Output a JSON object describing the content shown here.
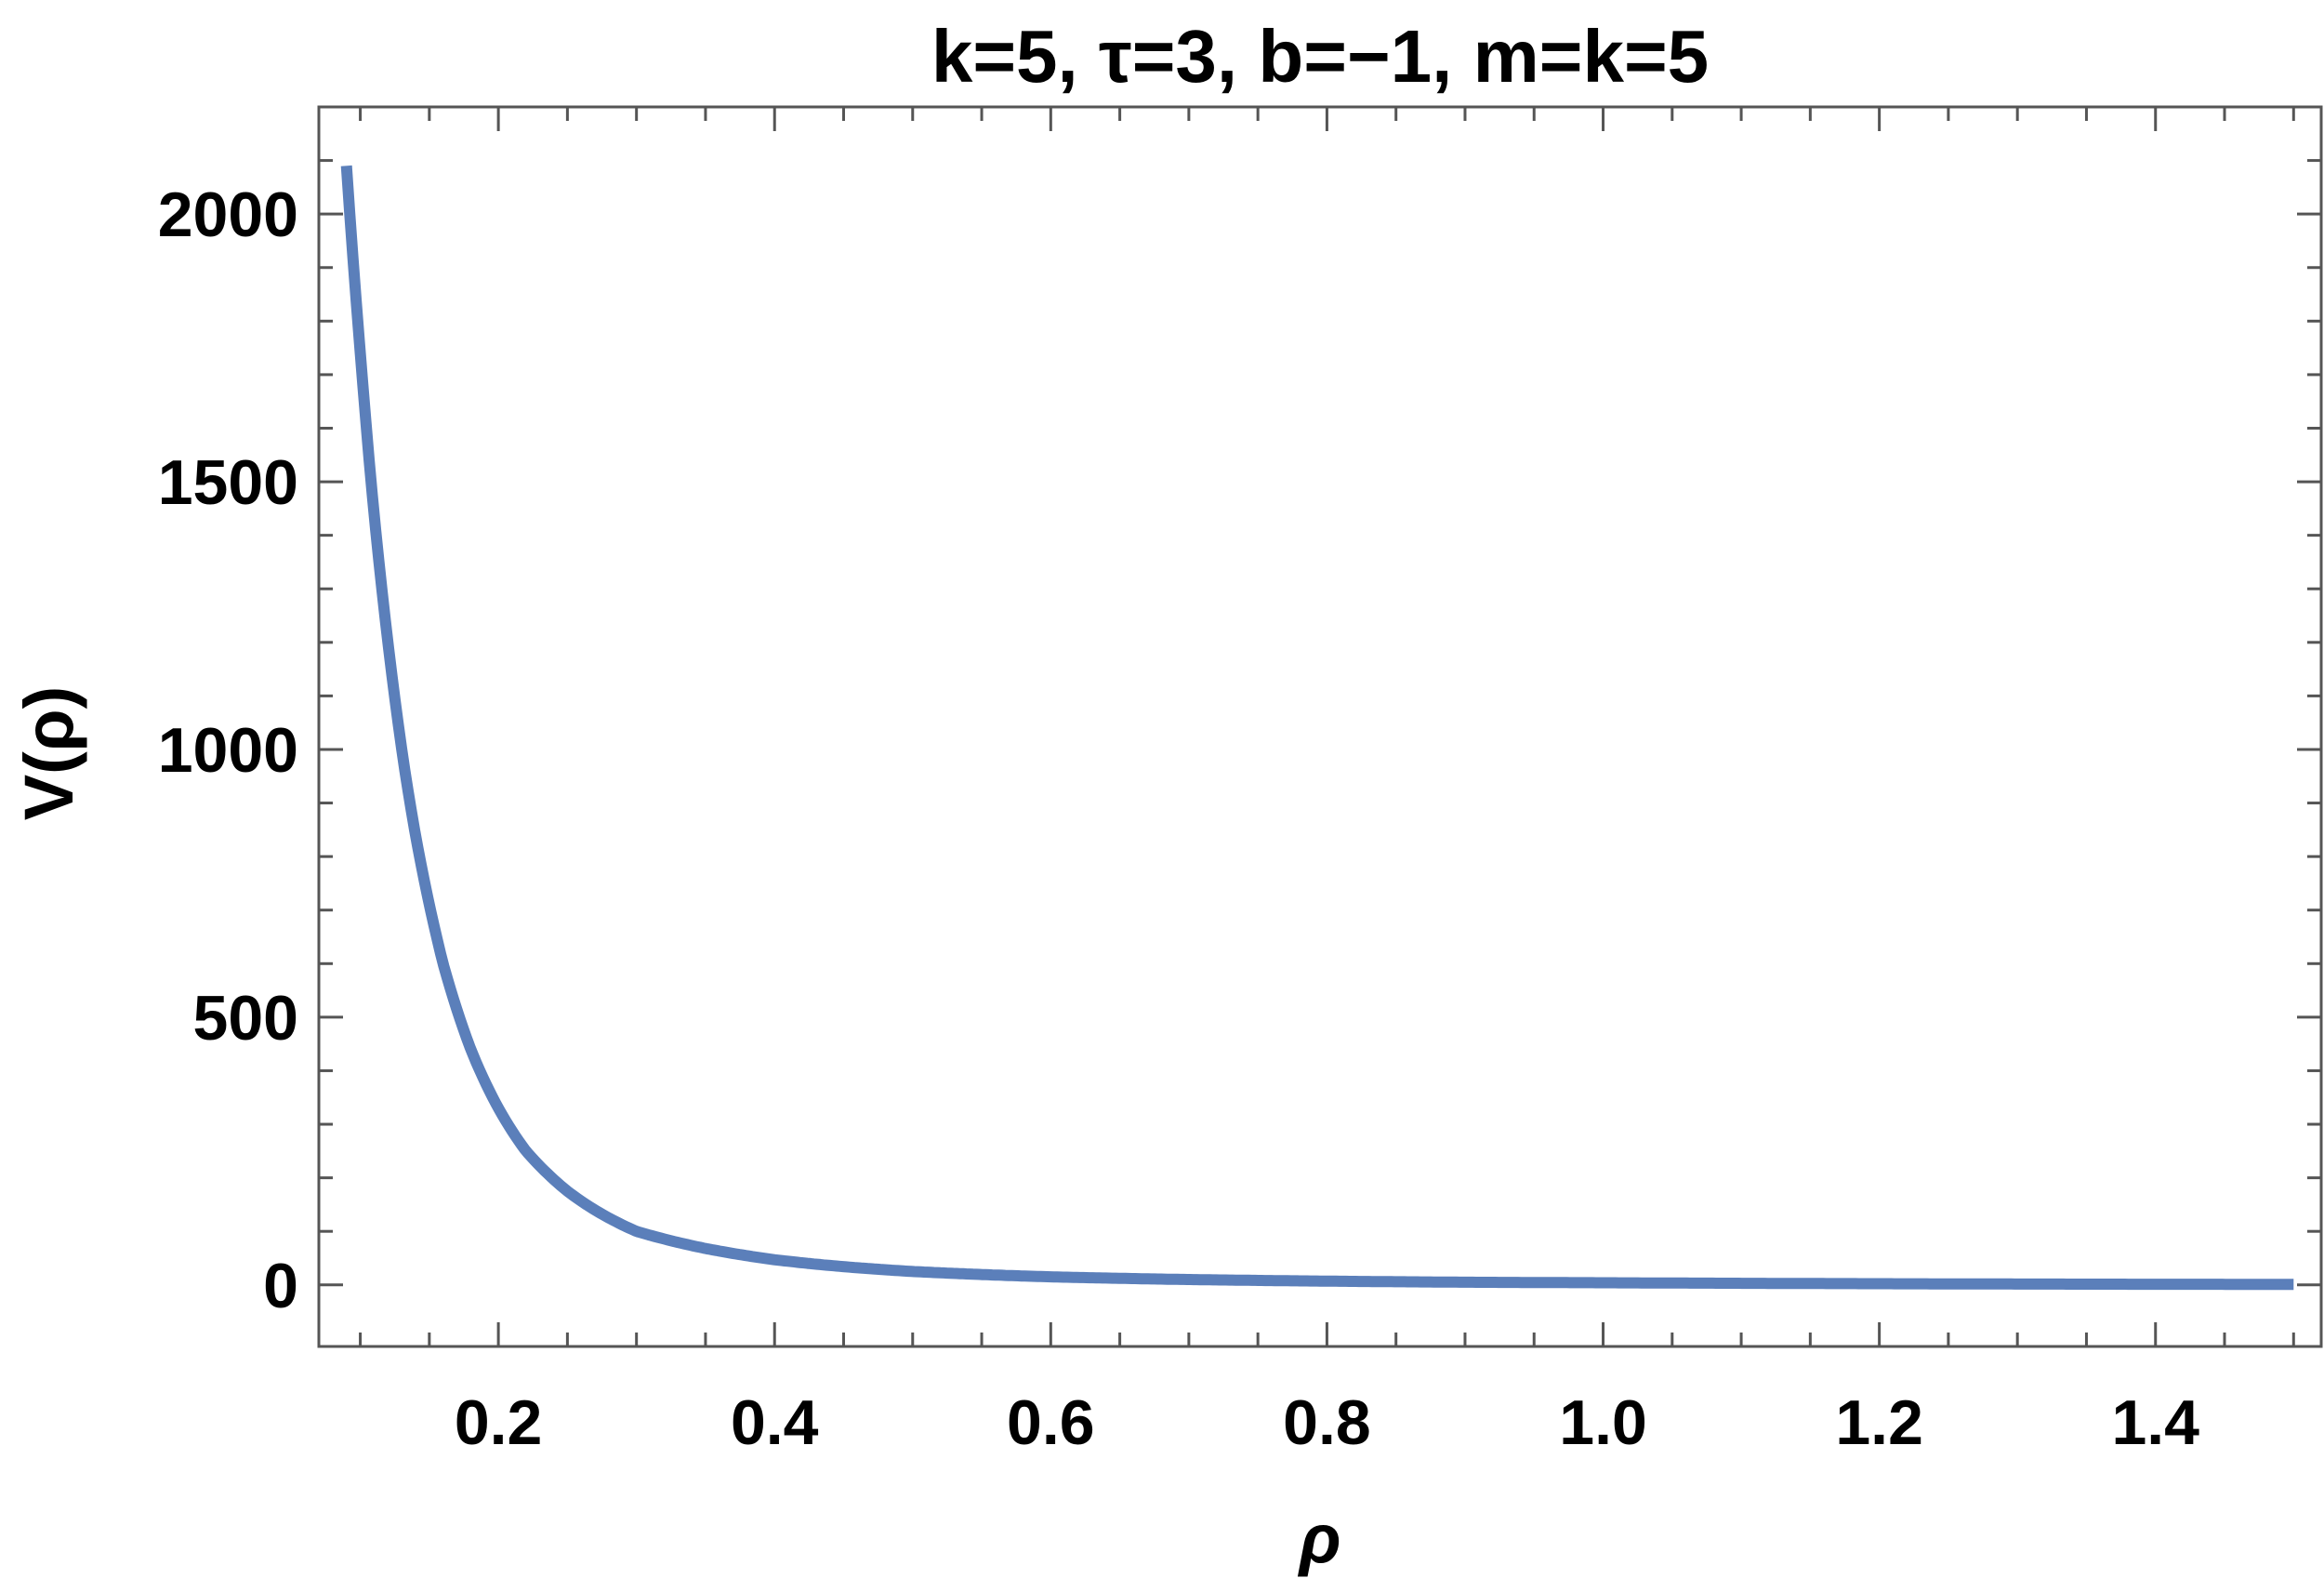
{
  "chart_data": {
    "type": "line",
    "title": "k=5, τ=3, b=−1, m=k=5",
    "xlabel": "ρ",
    "ylabel": "V(ρ)",
    "xlim": [
      0.07,
      1.52
    ],
    "ylim": [
      -115,
      2200
    ],
    "grid": false,
    "x_ticks": [
      0.2,
      0.4,
      0.6,
      0.8,
      1.0,
      1.2,
      1.4
    ],
    "x_tick_labels": [
      "0.2",
      "0.4",
      "0.6",
      "0.8",
      "1.0",
      "1.2",
      "1.4"
    ],
    "y_ticks": [
      0,
      500,
      1000,
      1500,
      2000
    ],
    "y_tick_labels": [
      "0",
      "500",
      "1000",
      "1500",
      "2000"
    ],
    "colors": {
      "line": "#5b7fba",
      "frame": "#555555"
    },
    "series": [
      {
        "x": [
          0.09,
          0.1,
          0.11,
          0.12,
          0.13,
          0.14,
          0.15,
          0.16,
          0.18,
          0.2,
          0.22,
          0.25,
          0.28,
          0.3,
          0.35,
          0.4,
          0.45,
          0.5,
          0.6,
          0.7,
          0.8,
          0.9,
          1.0,
          1.1,
          1.2,
          1.3,
          1.4,
          1.5
        ],
        "y": [
          2090,
          1740,
          1440,
          1200,
          1000,
          840,
          710,
          600,
          440,
          330,
          250,
          175,
          125,
          100,
          68,
          47,
          34,
          25,
          15,
          10,
          7,
          5,
          4,
          3,
          2.2,
          1.6,
          1.2,
          1
        ]
      }
    ]
  }
}
